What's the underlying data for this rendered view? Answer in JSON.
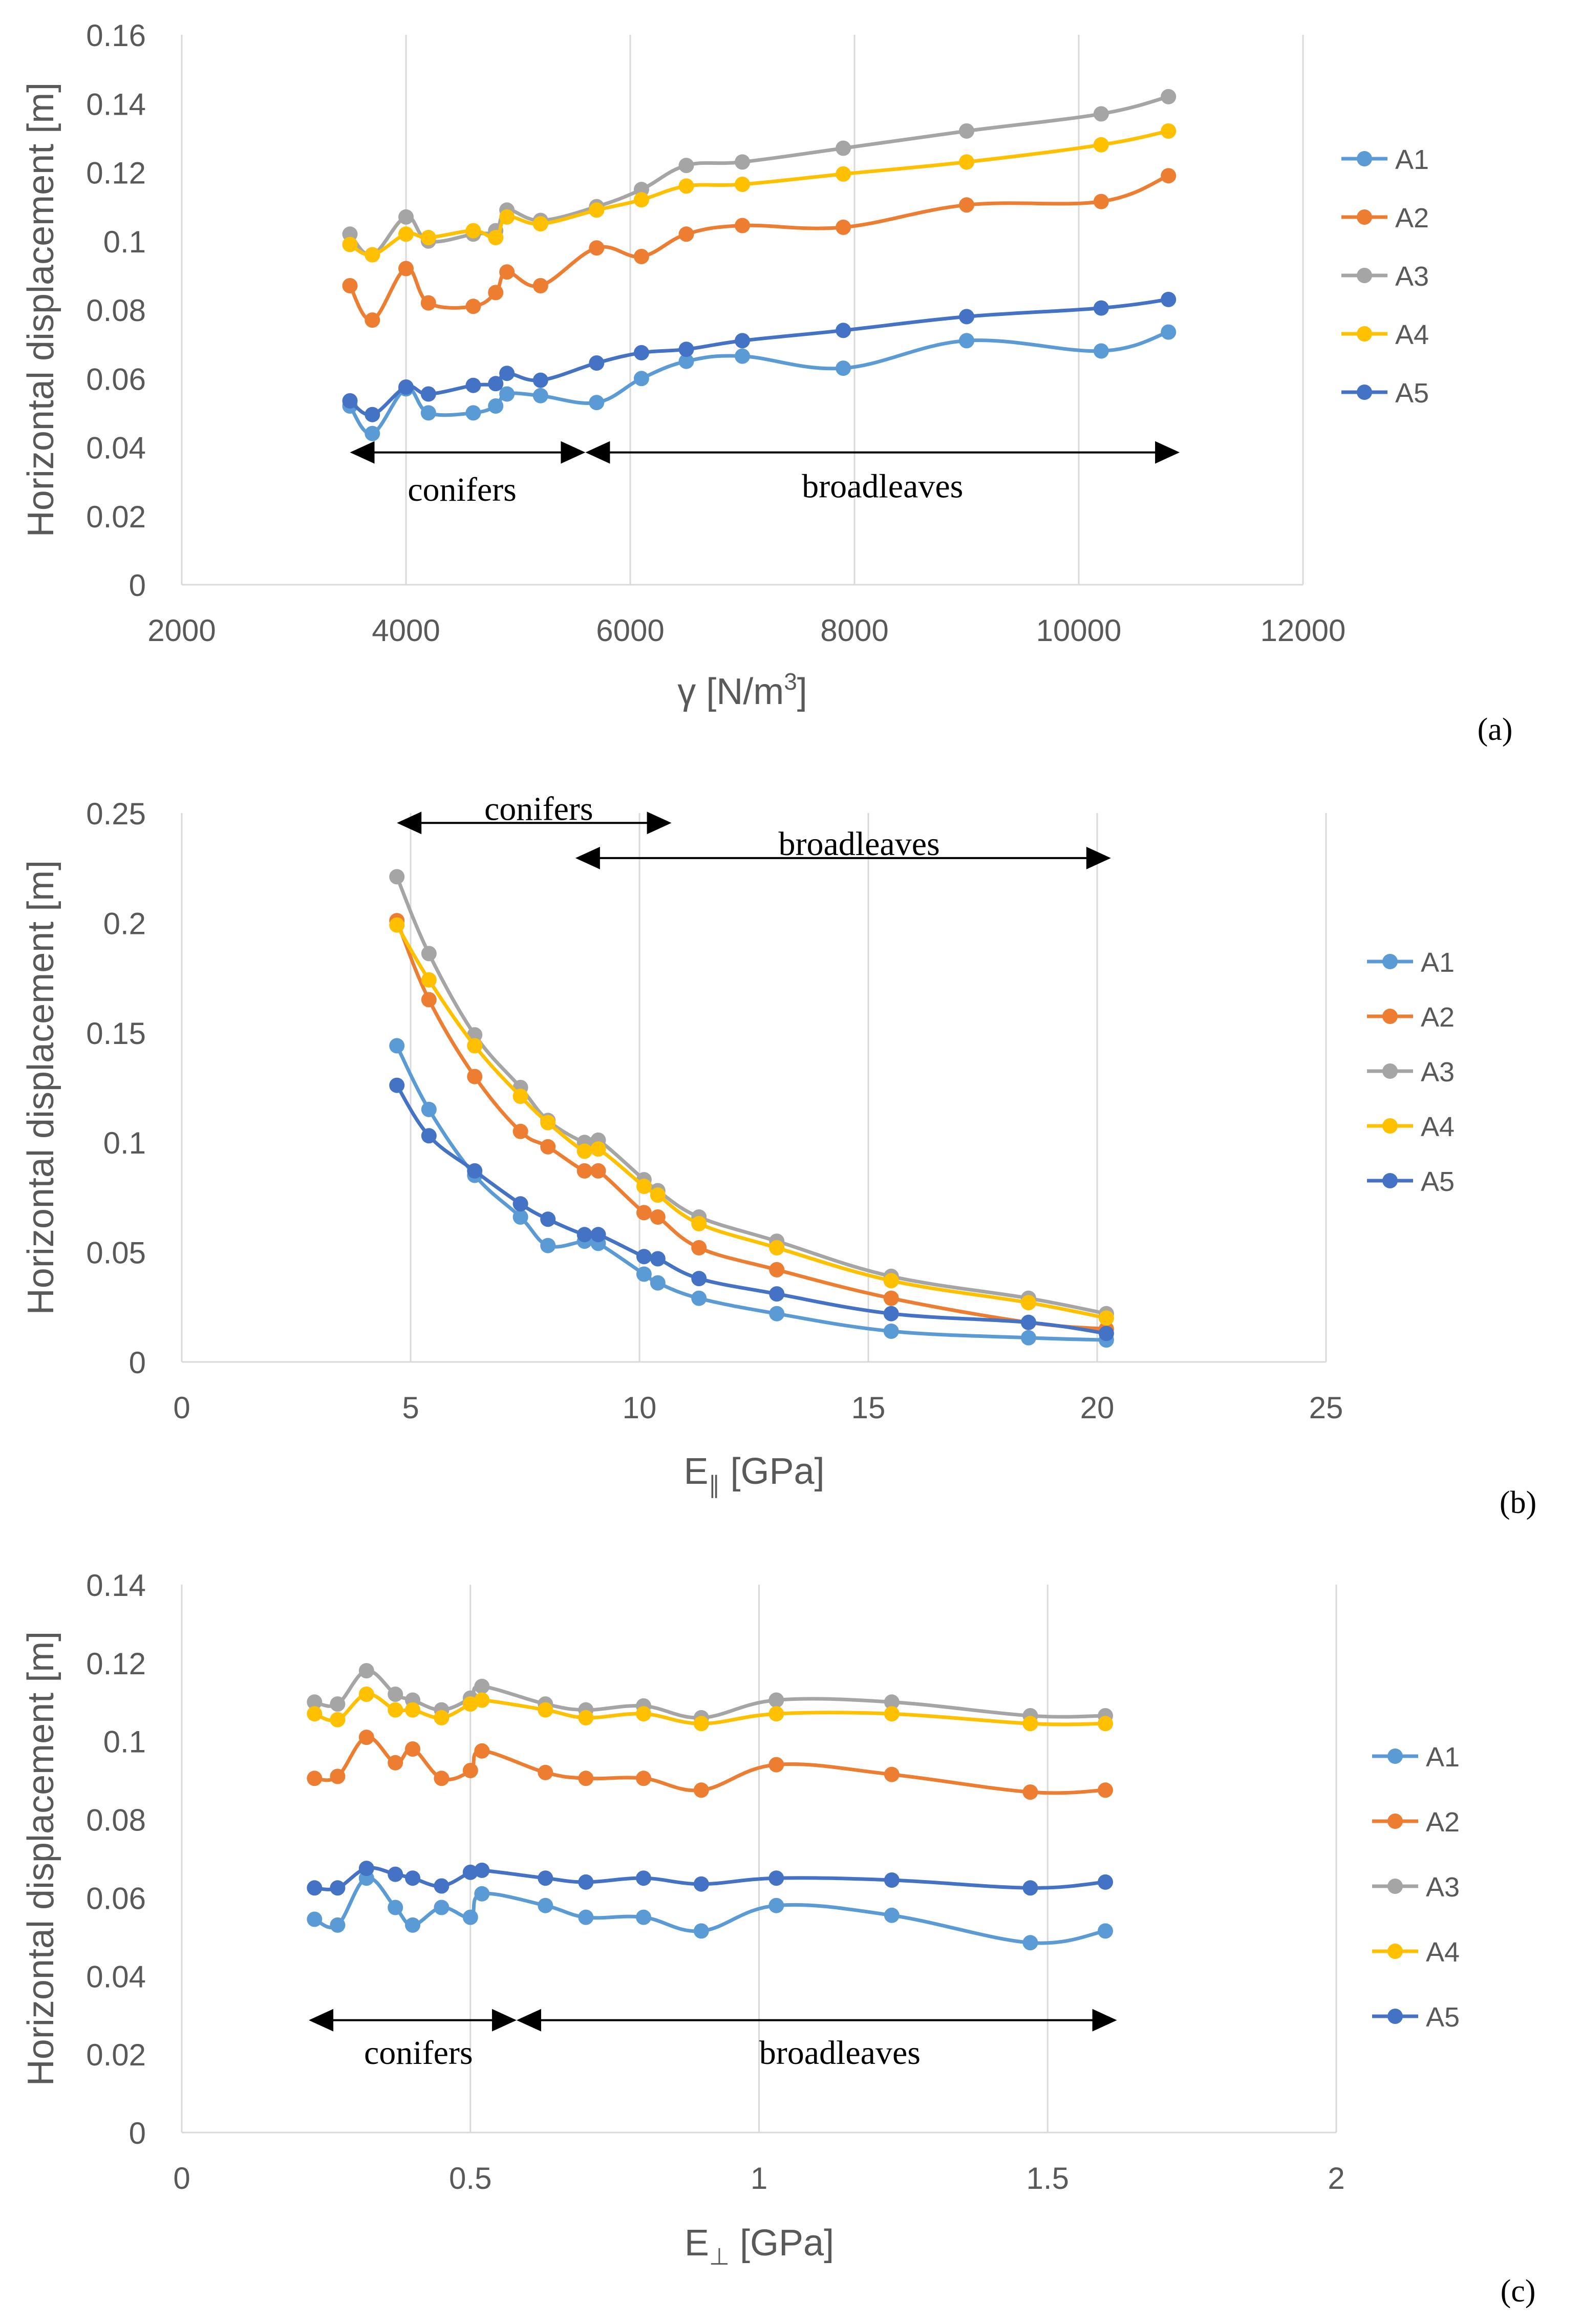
{
  "chart_data": [
    {
      "type": "line",
      "panel_label": "(a)",
      "xlabel_base": "γ [N/m",
      "xlabel_sup": "3",
      "xlabel_end": "]",
      "ylabel": "Horizontal displacement [m]",
      "xlim": [
        2000,
        12000
      ],
      "ylim": [
        0,
        0.16
      ],
      "xticks": [
        2000,
        4000,
        6000,
        8000,
        10000,
        12000
      ],
      "yticks": [
        0,
        0.02,
        0.04,
        0.06,
        0.08,
        0.1,
        0.12,
        0.14,
        0.16
      ],
      "xtick_labels": [
        "2000",
        "4000",
        "6000",
        "8000",
        "10000",
        "12000"
      ],
      "ytick_labels": [
        "0",
        "0.02",
        "0.04",
        "0.06",
        "0.08",
        "0.1",
        "0.12",
        "0.14",
        "0.16"
      ],
      "grid": "vertical",
      "legend_position": "right",
      "annotations": [
        {
          "text": "conifers",
          "x_from": 3500,
          "x_to": 5600,
          "y": 0.0385,
          "text_x": 4500,
          "text_y": 0.028
        },
        {
          "text": "broadleaves",
          "x_from": 5600,
          "x_to": 10900,
          "y": 0.0385,
          "text_x": 8250,
          "text_y": 0.029
        }
      ],
      "x": [
        3500,
        3700,
        4000,
        4200,
        4600,
        4800,
        4900,
        5200,
        5700,
        6100,
        6500,
        7000,
        7900,
        9000,
        10200,
        10800
      ],
      "series": [
        {
          "name": "A1",
          "color": "#5B9BD5",
          "values": [
            0.052,
            0.044,
            0.057,
            0.05,
            0.05,
            0.052,
            0.0555,
            0.055,
            0.053,
            0.06,
            0.065,
            0.0665,
            0.063,
            0.071,
            0.068,
            0.0735
          ]
        },
        {
          "name": "A2",
          "color": "#ED7D31",
          "values": [
            0.087,
            0.077,
            0.092,
            0.082,
            0.081,
            0.085,
            0.091,
            0.087,
            0.098,
            0.0955,
            0.102,
            0.1045,
            0.104,
            0.1105,
            0.1115,
            0.119
          ]
        },
        {
          "name": "A3",
          "color": "#A5A5A5",
          "values": [
            0.102,
            0.096,
            0.107,
            0.1,
            0.102,
            0.103,
            0.109,
            0.106,
            0.11,
            0.115,
            0.122,
            0.123,
            0.127,
            0.132,
            0.137,
            0.142
          ]
        },
        {
          "name": "A4",
          "color": "#FFC000",
          "values": [
            0.099,
            0.096,
            0.102,
            0.101,
            0.103,
            0.101,
            0.107,
            0.105,
            0.109,
            0.112,
            0.116,
            0.1165,
            0.1195,
            0.123,
            0.128,
            0.132
          ]
        },
        {
          "name": "A5",
          "color": "#4472C4",
          "values": [
            0.0535,
            0.0495,
            0.0575,
            0.0555,
            0.058,
            0.0585,
            0.0615,
            0.0595,
            0.0645,
            0.0675,
            0.0685,
            0.071,
            0.074,
            0.078,
            0.0805,
            0.083
          ]
        }
      ]
    },
    {
      "type": "line",
      "panel_label": "(b)",
      "xlabel_base": "E",
      "xlabel_sub": "∥",
      "xlabel_end": " [GPa]",
      "ylabel": "Horizontal displacement [m]",
      "xlim": [
        0,
        25
      ],
      "ylim": [
        0,
        0.25
      ],
      "xticks": [
        0,
        5,
        10,
        15,
        20,
        25
      ],
      "yticks": [
        0,
        0.05,
        0.1,
        0.15,
        0.2,
        0.25
      ],
      "xtick_labels": [
        "0",
        "5",
        "10",
        "15",
        "20",
        "25"
      ],
      "ytick_labels": [
        "0",
        "0.05",
        "0.1",
        "0.15",
        "0.2",
        "0.25"
      ],
      "grid": "vertical",
      "legend_position": "right",
      "annotations": [
        {
          "text": "conifers",
          "x_from": 4.7,
          "x_to": 10.7,
          "y": 0.2455,
          "text_x": 7.8,
          "text_y": 0.2525
        },
        {
          "text": "broadleaves",
          "x_from": 8.6,
          "x_to": 20.3,
          "y": 0.2295,
          "text_x": 14.8,
          "text_y": 0.2365
        }
      ],
      "x": [
        4.7,
        5.4,
        6.4,
        7.4,
        8.0,
        8.8,
        9.1,
        10.1,
        10.4,
        11.3,
        13.0,
        15.5,
        18.5,
        20.2
      ],
      "series": [
        {
          "name": "A1",
          "color": "#5B9BD5",
          "values": [
            0.144,
            0.115,
            0.085,
            0.066,
            0.053,
            0.055,
            0.054,
            0.04,
            0.036,
            0.029,
            0.022,
            0.014,
            0.011,
            0.01
          ]
        },
        {
          "name": "A2",
          "color": "#ED7D31",
          "values": [
            0.201,
            0.165,
            0.13,
            0.105,
            0.098,
            0.087,
            0.087,
            0.068,
            0.066,
            0.052,
            0.042,
            0.029,
            0.018,
            0.015
          ]
        },
        {
          "name": "A3",
          "color": "#A5A5A5",
          "values": [
            0.221,
            0.186,
            0.149,
            0.125,
            0.11,
            0.1,
            0.101,
            0.083,
            0.078,
            0.066,
            0.055,
            0.039,
            0.029,
            0.022
          ]
        },
        {
          "name": "A4",
          "color": "#FFC000",
          "values": [
            0.199,
            0.174,
            0.144,
            0.121,
            0.109,
            0.096,
            0.097,
            0.08,
            0.076,
            0.063,
            0.052,
            0.037,
            0.027,
            0.02
          ]
        },
        {
          "name": "A5",
          "color": "#4472C4",
          "values": [
            0.126,
            0.103,
            0.087,
            0.072,
            0.065,
            0.058,
            0.058,
            0.048,
            0.047,
            0.038,
            0.031,
            0.022,
            0.018,
            0.013
          ]
        }
      ]
    },
    {
      "type": "line",
      "panel_label": "(c)",
      "xlabel_base": "E",
      "xlabel_sub": "⊥",
      "xlabel_end": " [GPa]",
      "ylabel": "Horizontal displacement [m]",
      "xlim": [
        0,
        2
      ],
      "ylim": [
        0,
        0.14
      ],
      "xticks": [
        0,
        0.5,
        1,
        1.5,
        2
      ],
      "yticks": [
        0,
        0.02,
        0.04,
        0.06,
        0.08,
        0.1,
        0.12,
        0.14
      ],
      "xtick_labels": [
        "0",
        "0.5",
        "1",
        "1.5",
        "2"
      ],
      "ytick_labels": [
        "0",
        "0.02",
        "0.04",
        "0.06",
        "0.08",
        "0.1",
        "0.12",
        "0.14"
      ],
      "grid": "vertical",
      "legend_position": "right",
      "annotations": [
        {
          "text": "conifers",
          "x_from": 0.22,
          "x_to": 0.58,
          "y": 0.0287,
          "text_x": 0.41,
          "text_y": 0.0207
        },
        {
          "text": "broadleaves",
          "x_from": 0.58,
          "x_to": 1.62,
          "y": 0.0287,
          "text_x": 1.14,
          "text_y": 0.0207
        }
      ],
      "x": [
        0.23,
        0.27,
        0.32,
        0.37,
        0.4,
        0.45,
        0.5,
        0.52,
        0.63,
        0.7,
        0.8,
        0.9,
        1.03,
        1.23,
        1.47,
        1.6
      ],
      "series": [
        {
          "name": "A1",
          "color": "#5B9BD5",
          "values": [
            0.0545,
            0.053,
            0.065,
            0.0575,
            0.053,
            0.0575,
            0.055,
            0.061,
            0.058,
            0.055,
            0.055,
            0.0515,
            0.058,
            0.0555,
            0.0485,
            0.0515
          ]
        },
        {
          "name": "A2",
          "color": "#ED7D31",
          "values": [
            0.0905,
            0.091,
            0.101,
            0.0945,
            0.098,
            0.0905,
            0.0925,
            0.0975,
            0.092,
            0.0905,
            0.0905,
            0.0875,
            0.094,
            0.0915,
            0.087,
            0.0875
          ]
        },
        {
          "name": "A3",
          "color": "#A5A5A5",
          "values": [
            0.11,
            0.1095,
            0.118,
            0.112,
            0.1105,
            0.108,
            0.111,
            0.114,
            0.1095,
            0.108,
            0.109,
            0.106,
            0.1105,
            0.11,
            0.1065,
            0.1065
          ]
        },
        {
          "name": "A4",
          "color": "#FFC000",
          "values": [
            0.107,
            0.1055,
            0.112,
            0.108,
            0.108,
            0.106,
            0.1095,
            0.1105,
            0.108,
            0.106,
            0.107,
            0.1045,
            0.107,
            0.107,
            0.1045,
            0.1045
          ]
        },
        {
          "name": "A5",
          "color": "#4472C4",
          "values": [
            0.0625,
            0.0625,
            0.0675,
            0.066,
            0.065,
            0.063,
            0.0665,
            0.067,
            0.065,
            0.064,
            0.065,
            0.0635,
            0.065,
            0.0645,
            0.0625,
            0.064
          ]
        }
      ]
    }
  ]
}
